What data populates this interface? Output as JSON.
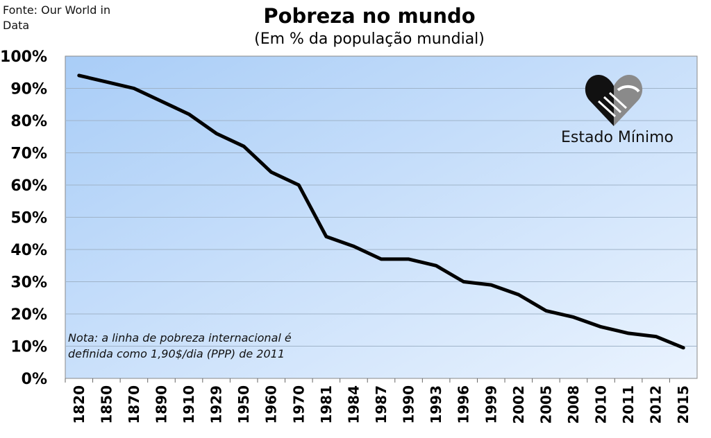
{
  "source": "Fonte: Our World in Data",
  "logo": {
    "text": "Estado Mínimo",
    "icon": "handshake-heart-icon"
  },
  "colors": {
    "line": "#000000",
    "bg_start": "#a9cdf7",
    "bg_end": "#eaf3fe",
    "grid": "#9fb3c8"
  },
  "chart_data": {
    "type": "line",
    "title": "Pobreza no mundo",
    "subtitle": "(Em % da população mundial)",
    "note": "Nota: a linha de pobreza internacional é definida como 1,90$/dia (PPP) de 2011",
    "categories": [
      "1820",
      "1850",
      "1870",
      "1890",
      "1910",
      "1929",
      "1950",
      "1960",
      "1970",
      "1981",
      "1984",
      "1987",
      "1990",
      "1993",
      "1996",
      "1999",
      "2002",
      "2005",
      "2008",
      "2010",
      "2011",
      "2012",
      "2015"
    ],
    "values": [
      94,
      92,
      90,
      86,
      82,
      76,
      72,
      64,
      60,
      44,
      41,
      37,
      37,
      35,
      30,
      29,
      26,
      21,
      19,
      16,
      14,
      13,
      9.5
    ],
    "ylim": [
      0,
      100
    ],
    "yticks": [
      "0%",
      "10%",
      "20%",
      "30%",
      "40%",
      "50%",
      "60%",
      "70%",
      "80%",
      "90%",
      "100%"
    ],
    "grid": true,
    "legend": "none"
  }
}
